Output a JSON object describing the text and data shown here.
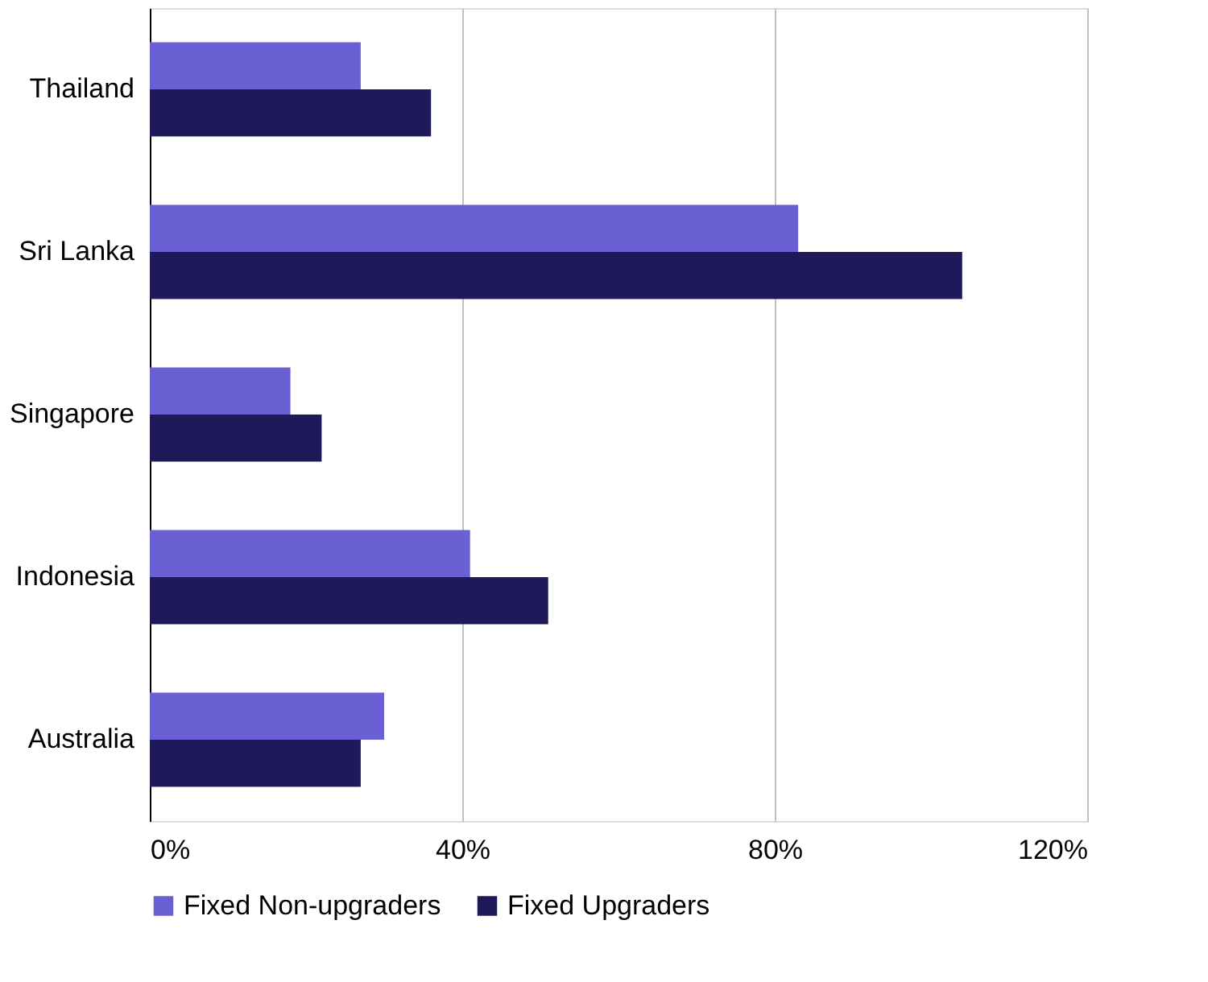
{
  "chart_data": {
    "type": "bar",
    "orientation": "horizontal",
    "categories": [
      "Thailand",
      "Sri Lanka",
      "Singapore",
      "Indonesia",
      "Australia"
    ],
    "series": [
      {
        "name": "Fixed Non-upgraders",
        "color": "#6a5fd3",
        "values": [
          27,
          83,
          18,
          41,
          30
        ]
      },
      {
        "name": "Fixed Upgraders",
        "color": "#1e1a5a",
        "values": [
          36,
          104,
          22,
          51,
          27
        ]
      }
    ],
    "xlim": [
      0,
      120
    ],
    "xticks": [
      {
        "value": 0,
        "label": "0%"
      },
      {
        "value": 40,
        "label": "40%"
      },
      {
        "value": 80,
        "label": "80%"
      },
      {
        "value": 120,
        "label": "120%"
      }
    ],
    "grid": "x",
    "legend": "bottom"
  }
}
